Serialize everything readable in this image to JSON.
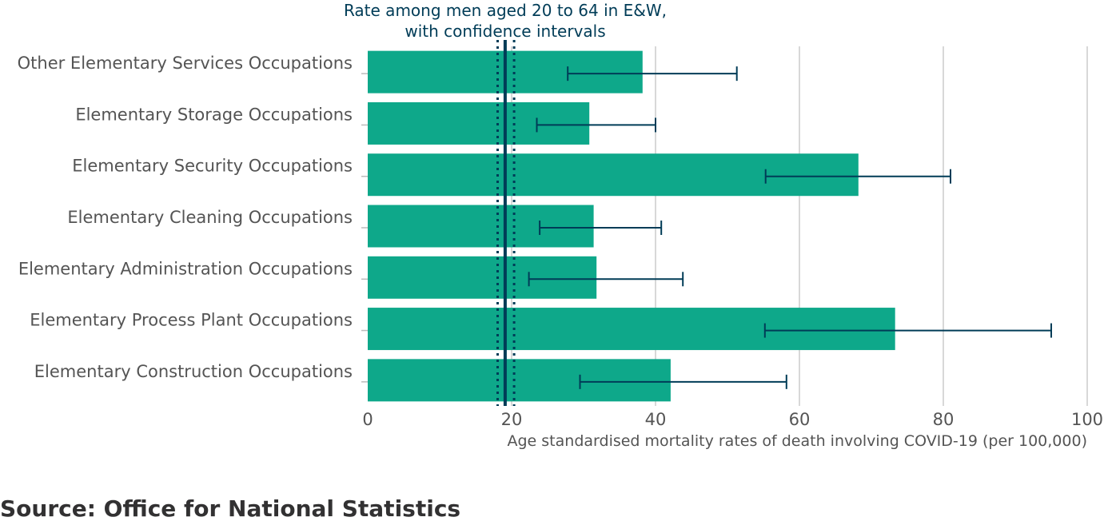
{
  "chart_data": {
    "type": "bar",
    "orientation": "horizontal",
    "categories": [
      "Other Elementary Services Occupations",
      "Elementary Storage Occupations",
      "Elementary Security Occupations",
      "Elementary Cleaning Occupations",
      "Elementary Administration Occupations",
      "Elementary Process Plant Occupations",
      "Elementary Construction Occupations"
    ],
    "values": [
      38.2,
      30.8,
      68.2,
      31.4,
      31.8,
      73.3,
      42.1
    ],
    "ci_lower": [
      27.8,
      23.5,
      55.3,
      23.9,
      22.4,
      55.2,
      29.5
    ],
    "ci_upper": [
      51.3,
      40.0,
      81.0,
      40.8,
      43.8,
      95.0,
      58.2
    ],
    "reference_line": {
      "label_lines": [
        "Rate among men aged 20 to 64 in E&W,",
        "with confidence intervals"
      ],
      "value": 19.1,
      "ci_lower": 18.5,
      "ci_upper": 19.9
    },
    "xlabel": "Age standardised mortality rates of death involving COVID-19 (per 100,000)",
    "xlim": [
      0,
      100
    ],
    "xticks": [
      0,
      20,
      40,
      60,
      80,
      100
    ],
    "grid": "vertical",
    "bar_color": "#0ea88a",
    "errorbar_color": "#003c57",
    "gridline_color": "#cccccc"
  },
  "source": "Source: Office for National Statistics"
}
